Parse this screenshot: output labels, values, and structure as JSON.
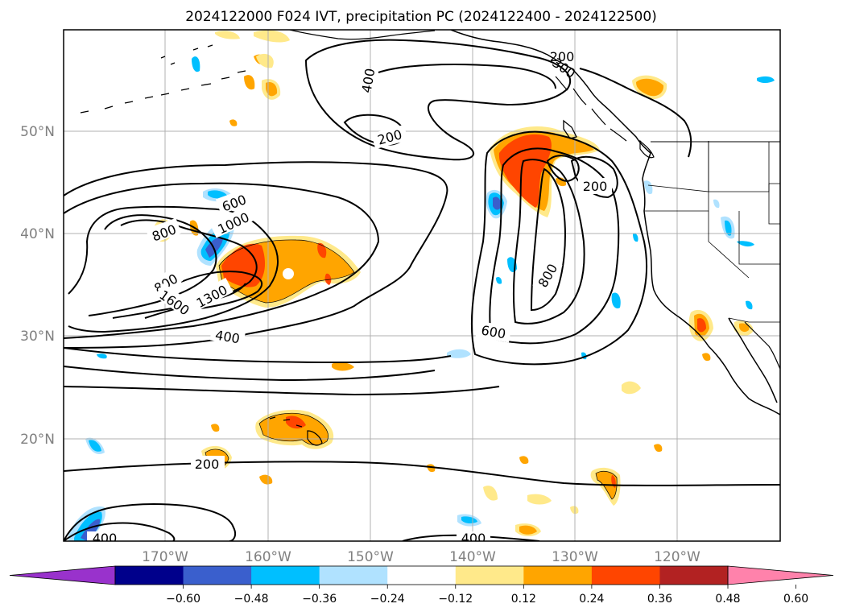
{
  "title": "2024122000 F024 IVT, precipitation PC (2024122400 - 2024122500)",
  "lat_ticks": [
    "50°N",
    "40°N",
    "30°N",
    "20°N"
  ],
  "lon_ticks": [
    "170°W",
    "160°W",
    "150°W",
    "140°W",
    "130°W",
    "120°W"
  ],
  "colorbar": {
    "ticks": [
      "−0.60",
      "−0.48",
      "−0.36",
      "−0.24",
      "−0.12",
      "0.12",
      "0.24",
      "0.36",
      "0.48",
      "0.60"
    ],
    "colors": [
      "#9932cc",
      "#00008b",
      "#3a5fcd",
      "#00bfff",
      "#b0e2ff",
      "#ffffff",
      "#ffe98a",
      "#ffa500",
      "#ff4500",
      "#b22222",
      "#ff82ab"
    ]
  },
  "contour_labels": [
    "400",
    "300",
    "200",
    "200",
    "200",
    "800",
    "600",
    "1000",
    "800",
    "1600",
    "1300",
    "400",
    "600",
    "800",
    "200",
    "400",
    "400"
  ],
  "precip_colors": {
    "yellow": "#ffe98a",
    "orange": "#ffa500",
    "red": "#ff4500",
    "darkred": "#b22222",
    "lightblue": "#b0e2ff",
    "cyan": "#00bfff",
    "blue": "#3a5fcd"
  },
  "coastline_color": "#000000",
  "grid_color": "#b0b0b0"
}
